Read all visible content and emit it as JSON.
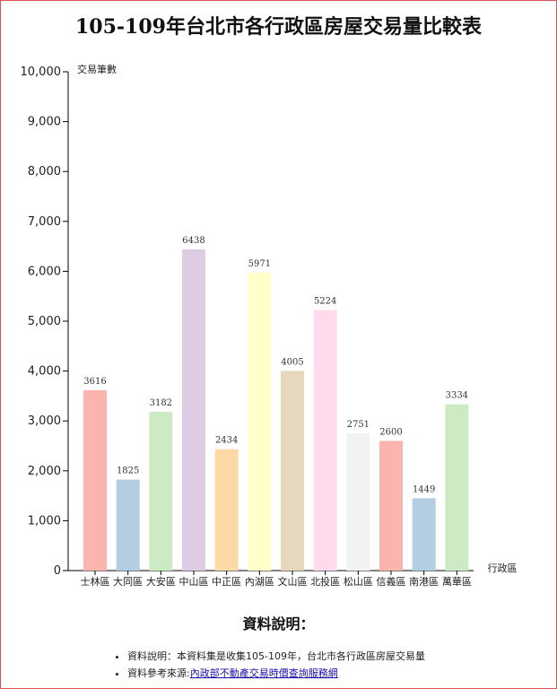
{
  "page": {
    "title": "105-109年台北市各行政區房屋交易量比較表"
  },
  "notes": {
    "heading": "資料說明：",
    "item1": "資料說明：本資料集是收集105-109年，台北市各行政區房屋交易量",
    "item2_prefix": "資料參考來源:",
    "item2_link": "內政部不動產交易時價查詢服務網"
  },
  "chart_data": {
    "type": "bar",
    "ylabel": "交易筆數",
    "xlabel": "行政區",
    "ylim": [
      0,
      10000
    ],
    "yticks": [
      "0",
      "1,000",
      "2,000",
      "3,000",
      "4,000",
      "5,000",
      "6,000",
      "7,000",
      "8,000",
      "9,000",
      "10,000"
    ],
    "grid": false,
    "categories": [
      "士林區",
      "大同區",
      "大安區",
      "中山區",
      "中正區",
      "內湖區",
      "文山區",
      "北投區",
      "松山區",
      "信義區",
      "南港區",
      "萬華區"
    ],
    "values": [
      3616,
      1825,
      3182,
      6438,
      2434,
      5971,
      4005,
      5224,
      2751,
      2600,
      1449,
      3334
    ],
    "colors": [
      "#fbb4ae",
      "#b3cde3",
      "#ccebc5",
      "#decbe4",
      "#fed9a6",
      "#ffffcc",
      "#e5d8bd",
      "#fddaec",
      "#f2f2f2",
      "#fbb4ae",
      "#b3cde3",
      "#ccebc5"
    ]
  }
}
